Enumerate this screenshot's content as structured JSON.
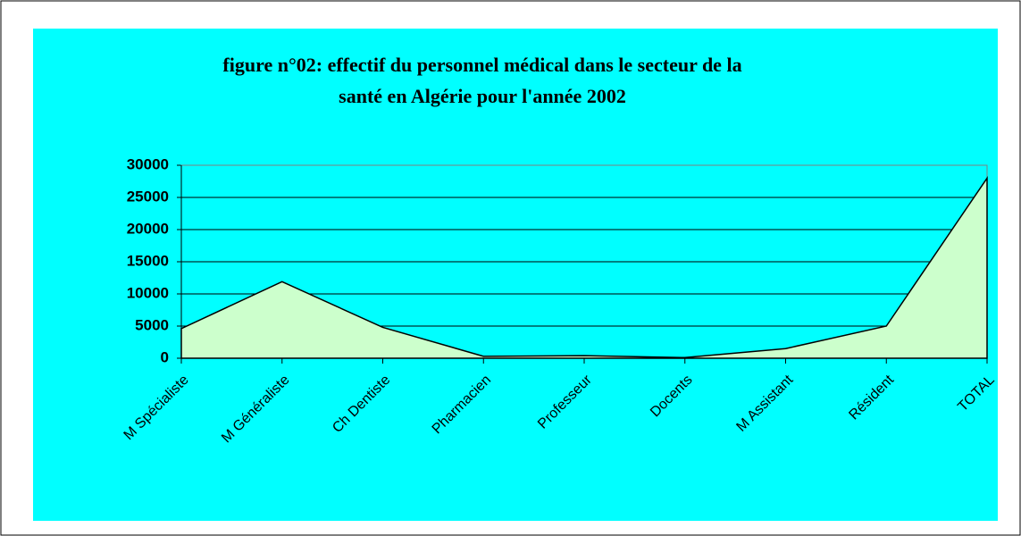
{
  "chart_data": {
    "type": "area",
    "title": [
      "figure n°02: effectif du personnel médical dans le secteur de la",
      "santé en Algérie pour l'année 2002"
    ],
    "categories": [
      "M Spécialiste",
      "M Généraliste",
      "Ch Dentiste",
      "Pharmacien",
      "Professeur",
      "Docents",
      "M Assistant",
      "Résident",
      "TOTAL"
    ],
    "values": [
      4600,
      11900,
      4800,
      300,
      400,
      100,
      1500,
      5000,
      28000
    ],
    "color": "#ccffcc",
    "background": "#00ffff",
    "ylim": [
      0,
      30000
    ],
    "yticks": [
      0,
      5000,
      10000,
      15000,
      20000,
      25000,
      30000
    ],
    "grid": true
  }
}
